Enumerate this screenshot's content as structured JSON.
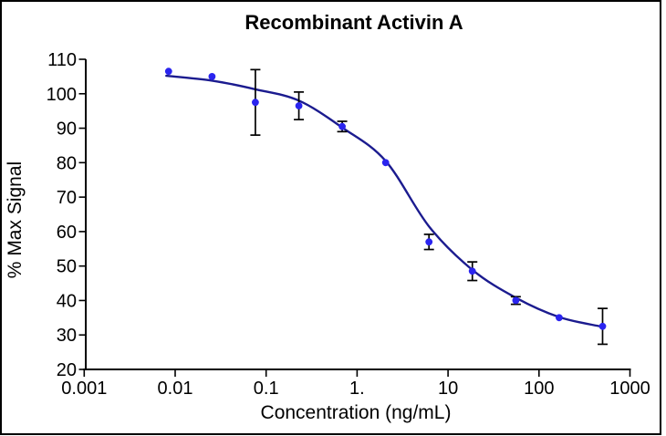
{
  "chart_data": {
    "type": "scatter",
    "title": "Recombinant Activin A",
    "xlabel": "Concentration (ng/mL)",
    "ylabel": "% Max Signal",
    "x_scale": "log",
    "xlim": [
      0.001,
      1000
    ],
    "ylim": [
      20,
      110
    ],
    "grid": false,
    "legend": "none",
    "x_tick_values": [
      0.001,
      0.01,
      0.1,
      1,
      10,
      100,
      1000
    ],
    "x_tick_labels": [
      "0.001",
      "0.01",
      "0.1",
      "1.",
      "10",
      "100",
      "1000"
    ],
    "y_tick_values": [
      20,
      30,
      40,
      50,
      60,
      70,
      80,
      90,
      100,
      110
    ],
    "y_tick_labels": [
      "20",
      "30",
      "40",
      "50",
      "60",
      "70",
      "80",
      "90",
      "100",
      "110"
    ],
    "colors": {
      "marker": "#2a24ef",
      "curve": "#1b1b8f",
      "error_bar": "#000000",
      "axis": "#000000",
      "border": "#000000",
      "background": "#ffffff"
    },
    "series": [
      {
        "name": "Recombinant Activin A",
        "points": [
          {
            "x": 0.00847,
            "y": 106.5,
            "err": 0
          },
          {
            "x": 0.0254,
            "y": 105.0,
            "err": 0
          },
          {
            "x": 0.0762,
            "y": 97.5,
            "err": 9.5
          },
          {
            "x": 0.229,
            "y": 96.5,
            "err": 4.0
          },
          {
            "x": 0.686,
            "y": 90.5,
            "err": 1.5
          },
          {
            "x": 2.06,
            "y": 80.0,
            "err": 0
          },
          {
            "x": 6.17,
            "y": 57.0,
            "err": 2.2
          },
          {
            "x": 18.5,
            "y": 48.5,
            "err": 2.7
          },
          {
            "x": 55.6,
            "y": 40.0,
            "err": 1.1
          },
          {
            "x": 166.7,
            "y": 35.0,
            "err": 0
          },
          {
            "x": 500,
            "y": 32.5,
            "err": 5.2
          }
        ],
        "fit_curve": [
          {
            "x": 0.008,
            "y": 105.2
          },
          {
            "x": 0.0254,
            "y": 103.8
          },
          {
            "x": 0.0762,
            "y": 101.3
          },
          {
            "x": 0.229,
            "y": 98.0
          },
          {
            "x": 0.686,
            "y": 90.2
          },
          {
            "x": 2.06,
            "y": 80.5
          },
          {
            "x": 6.17,
            "y": 61.5
          },
          {
            "x": 18.5,
            "y": 48.9
          },
          {
            "x": 55.6,
            "y": 40.8
          },
          {
            "x": 166.7,
            "y": 35.2
          },
          {
            "x": 470,
            "y": 32.5
          }
        ]
      }
    ]
  }
}
